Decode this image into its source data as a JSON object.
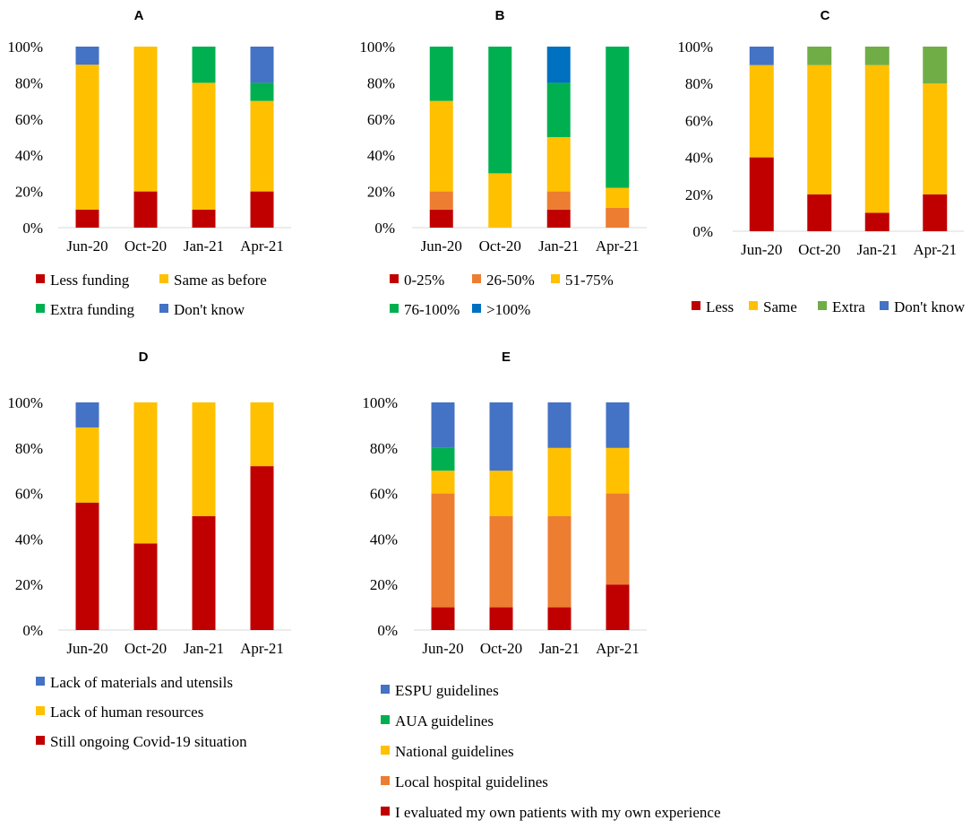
{
  "figure": {
    "panels": [
      {
        "id": "A",
        "title": "A",
        "type": "stacked-bar-100",
        "yticks": [
          "0%",
          "20%",
          "40%",
          "60%",
          "80%",
          "100%"
        ],
        "ylim": [
          0,
          100
        ],
        "categories": [
          "Jun-20",
          "Oct-20",
          "Jan-21",
          "Apr-21"
        ],
        "series": [
          {
            "name": "Less funding",
            "color": "#C00000",
            "values": [
              10,
              20,
              10,
              20
            ]
          },
          {
            "name": "Same as before",
            "color": "#FFC000",
            "values": [
              80,
              80,
              70,
              50
            ]
          },
          {
            "name": "Extra funding",
            "color": "#00B050",
            "values": [
              0,
              0,
              20,
              10
            ]
          },
          {
            "name": "Don't know",
            "color": "#4472C4",
            "values": [
              10,
              0,
              0,
              20
            ]
          }
        ]
      },
      {
        "id": "B",
        "title": "B",
        "type": "stacked-bar-100",
        "yticks": [
          "0%",
          "20%",
          "40%",
          "60%",
          "80%",
          "100%"
        ],
        "ylim": [
          0,
          100
        ],
        "categories": [
          "Jun-20",
          "Oct-20",
          "Jan-21",
          "Apr-21"
        ],
        "series": [
          {
            "name": "0-25%",
            "color": "#C00000",
            "values": [
              10,
              0,
              10,
              0
            ]
          },
          {
            "name": "26-50%",
            "color": "#ED7D31",
            "values": [
              10,
              0,
              10,
              11
            ]
          },
          {
            "name": "51-75%",
            "color": "#FFC000",
            "values": [
              50,
              30,
              30,
              11
            ]
          },
          {
            "name": "76-100%",
            "color": "#00B050",
            "values": [
              30,
              70,
              30,
              78
            ]
          },
          {
            "name": ">100%",
            "color": "#0070C0",
            "values": [
              0,
              0,
              20,
              0
            ]
          }
        ]
      },
      {
        "id": "C",
        "title": "C",
        "type": "stacked-bar-100",
        "yticks": [
          "0%",
          "20%",
          "40%",
          "60%",
          "80%",
          "100%"
        ],
        "ylim": [
          0,
          100
        ],
        "categories": [
          "Jun-20",
          "Oct-20",
          "Jan-21",
          "Apr-21"
        ],
        "series": [
          {
            "name": "Less",
            "color": "#C00000",
            "values": [
              40,
              20,
              10,
              20
            ]
          },
          {
            "name": "Same",
            "color": "#FFC000",
            "values": [
              50,
              70,
              80,
              60
            ]
          },
          {
            "name": "Extra",
            "color": "#70AD47",
            "values": [
              0,
              10,
              10,
              20
            ]
          },
          {
            "name": "Don't know",
            "color": "#4472C4",
            "values": [
              10,
              0,
              0,
              0
            ]
          }
        ]
      },
      {
        "id": "D",
        "title": "D",
        "type": "stacked-bar-100",
        "yticks": [
          "0%",
          "20%",
          "40%",
          "60%",
          "80%",
          "100%"
        ],
        "ylim": [
          0,
          100
        ],
        "categories": [
          "Jun-20",
          "Oct-20",
          "Jan-21",
          "Apr-21"
        ],
        "series": [
          {
            "name": "Still ongoing Covid-19 situation",
            "color": "#C00000",
            "values": [
              56,
              38,
              50,
              72
            ]
          },
          {
            "name": "Lack of human resources",
            "color": "#FFC000",
            "values": [
              33,
              62,
              50,
              28
            ]
          },
          {
            "name": "Lack of materials and utensils",
            "color": "#4472C4",
            "values": [
              11,
              0,
              0,
              0
            ]
          }
        ],
        "legend_order": [
          "Lack of materials and utensils",
          "Lack of human resources",
          "Still ongoing Covid-19 situation"
        ]
      },
      {
        "id": "E",
        "title": "E",
        "type": "stacked-bar-100",
        "yticks": [
          "0%",
          "20%",
          "40%",
          "60%",
          "80%",
          "100%"
        ],
        "ylim": [
          0,
          100
        ],
        "categories": [
          "Jun-20",
          "Oct-20",
          "Jan-21",
          "Apr-21"
        ],
        "series": [
          {
            "name": "I evaluated my own patients with my own experience",
            "color": "#C00000",
            "values": [
              10,
              10,
              10,
              20
            ]
          },
          {
            "name": "Local hospital guidelines",
            "color": "#ED7D31",
            "values": [
              50,
              40,
              40,
              40
            ]
          },
          {
            "name": "National guidelines",
            "color": "#FFC000",
            "values": [
              10,
              20,
              30,
              20
            ]
          },
          {
            "name": "AUA guidelines",
            "color": "#00B050",
            "values": [
              10,
              0,
              0,
              0
            ]
          },
          {
            "name": "ESPU guidelines",
            "color": "#4472C4",
            "values": [
              20,
              30,
              20,
              20
            ]
          }
        ],
        "legend_order": [
          "ESPU guidelines",
          "AUA guidelines",
          "National guidelines",
          "Local hospital guidelines",
          "I evaluated my own patients with my own experience"
        ]
      }
    ]
  },
  "chart_data": [
    {
      "type": "bar",
      "title": "A",
      "categories": [
        "Jun-20",
        "Oct-20",
        "Jan-21",
        "Apr-21"
      ],
      "series": [
        {
          "name": "Less funding",
          "values": [
            10,
            20,
            10,
            20
          ]
        },
        {
          "name": "Same as before",
          "values": [
            80,
            80,
            70,
            50
          ]
        },
        {
          "name": "Extra funding",
          "values": [
            0,
            0,
            20,
            10
          ]
        },
        {
          "name": "Don't know",
          "values": [
            10,
            0,
            0,
            20
          ]
        }
      ],
      "stacked": true,
      "ylim": [
        0,
        100
      ],
      "ylabel": "",
      "xlabel": ""
    },
    {
      "type": "bar",
      "title": "B",
      "categories": [
        "Jun-20",
        "Oct-20",
        "Jan-21",
        "Apr-21"
      ],
      "series": [
        {
          "name": "0-25%",
          "values": [
            10,
            0,
            10,
            0
          ]
        },
        {
          "name": "26-50%",
          "values": [
            10,
            0,
            10,
            11
          ]
        },
        {
          "name": "51-75%",
          "values": [
            50,
            30,
            30,
            11
          ]
        },
        {
          "name": "76-100%",
          "values": [
            30,
            70,
            30,
            78
          ]
        },
        {
          "name": ">100%",
          "values": [
            0,
            0,
            20,
            0
          ]
        }
      ],
      "stacked": true,
      "ylim": [
        0,
        100
      ],
      "ylabel": "",
      "xlabel": ""
    },
    {
      "type": "bar",
      "title": "C",
      "categories": [
        "Jun-20",
        "Oct-20",
        "Jan-21",
        "Apr-21"
      ],
      "series": [
        {
          "name": "Less",
          "values": [
            40,
            20,
            10,
            20
          ]
        },
        {
          "name": "Same",
          "values": [
            50,
            70,
            80,
            60
          ]
        },
        {
          "name": "Extra",
          "values": [
            0,
            10,
            10,
            20
          ]
        },
        {
          "name": "Don't know",
          "values": [
            10,
            0,
            0,
            0
          ]
        }
      ],
      "stacked": true,
      "ylim": [
        0,
        100
      ],
      "ylabel": "",
      "xlabel": ""
    },
    {
      "type": "bar",
      "title": "D",
      "categories": [
        "Jun-20",
        "Oct-20",
        "Jan-21",
        "Apr-21"
      ],
      "series": [
        {
          "name": "Still ongoing Covid-19 situation",
          "values": [
            56,
            38,
            50,
            72
          ]
        },
        {
          "name": "Lack of human resources",
          "values": [
            33,
            62,
            50,
            28
          ]
        },
        {
          "name": "Lack of materials and utensils",
          "values": [
            11,
            0,
            0,
            0
          ]
        }
      ],
      "stacked": true,
      "ylim": [
        0,
        100
      ],
      "ylabel": "",
      "xlabel": ""
    },
    {
      "type": "bar",
      "title": "E",
      "categories": [
        "Jun-20",
        "Oct-20",
        "Jan-21",
        "Apr-21"
      ],
      "series": [
        {
          "name": "I evaluated my own patients with my own experience",
          "values": [
            10,
            10,
            10,
            20
          ]
        },
        {
          "name": "Local hospital guidelines",
          "values": [
            50,
            40,
            40,
            40
          ]
        },
        {
          "name": "National guidelines",
          "values": [
            10,
            20,
            30,
            20
          ]
        },
        {
          "name": "AUA guidelines",
          "values": [
            10,
            0,
            0,
            0
          ]
        },
        {
          "name": "ESPU guidelines",
          "values": [
            20,
            30,
            20,
            20
          ]
        }
      ],
      "stacked": true,
      "ylim": [
        0,
        100
      ],
      "ylabel": "",
      "xlabel": ""
    }
  ]
}
